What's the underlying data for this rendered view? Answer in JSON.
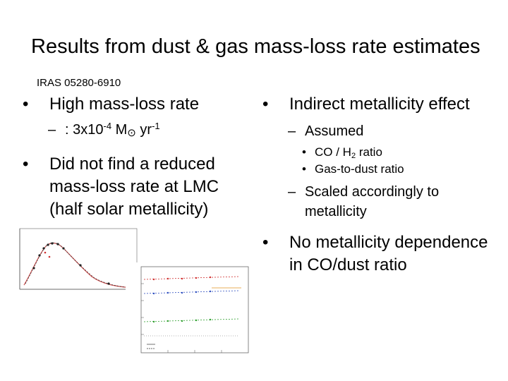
{
  "slide": {
    "title": "Results from dust & gas mass-loss rate estimates",
    "source_label": "IRAS 05280-6910"
  },
  "left_bullets": {
    "b1": "High mass-loss rate",
    "b1_sub_prefix": ": 3x10",
    "b1_sub_exp": "-4",
    "b1_sub_unit": "M",
    "b1_sub_sun": "⊙",
    "b1_sub_yr": "yr",
    "b1_sub_yr_exp": "-1",
    "b2": "Did not find a reduced mass-loss rate at LMC (half solar metallicity)"
  },
  "right_bullets": {
    "r1": "Indirect metallicity effect",
    "r1_sub1": "Assumed",
    "r1_sub1_item1_a": "CO / H",
    "r1_sub1_item1_sub": "2",
    "r1_sub1_item1_b": " ratio",
    "r1_sub1_item2": "Gas-to-dust ratio",
    "r1_sub2": "Scaled accordingly to metallicity",
    "r2": "No metallicity dependence in CO/dust ratio"
  },
  "colors": {
    "text": "#000000",
    "sed_model": "#d05050",
    "series_red": "#d03030",
    "series_blue": "#3050c0",
    "series_green": "#30a030",
    "series_orange": "#e09020"
  }
}
